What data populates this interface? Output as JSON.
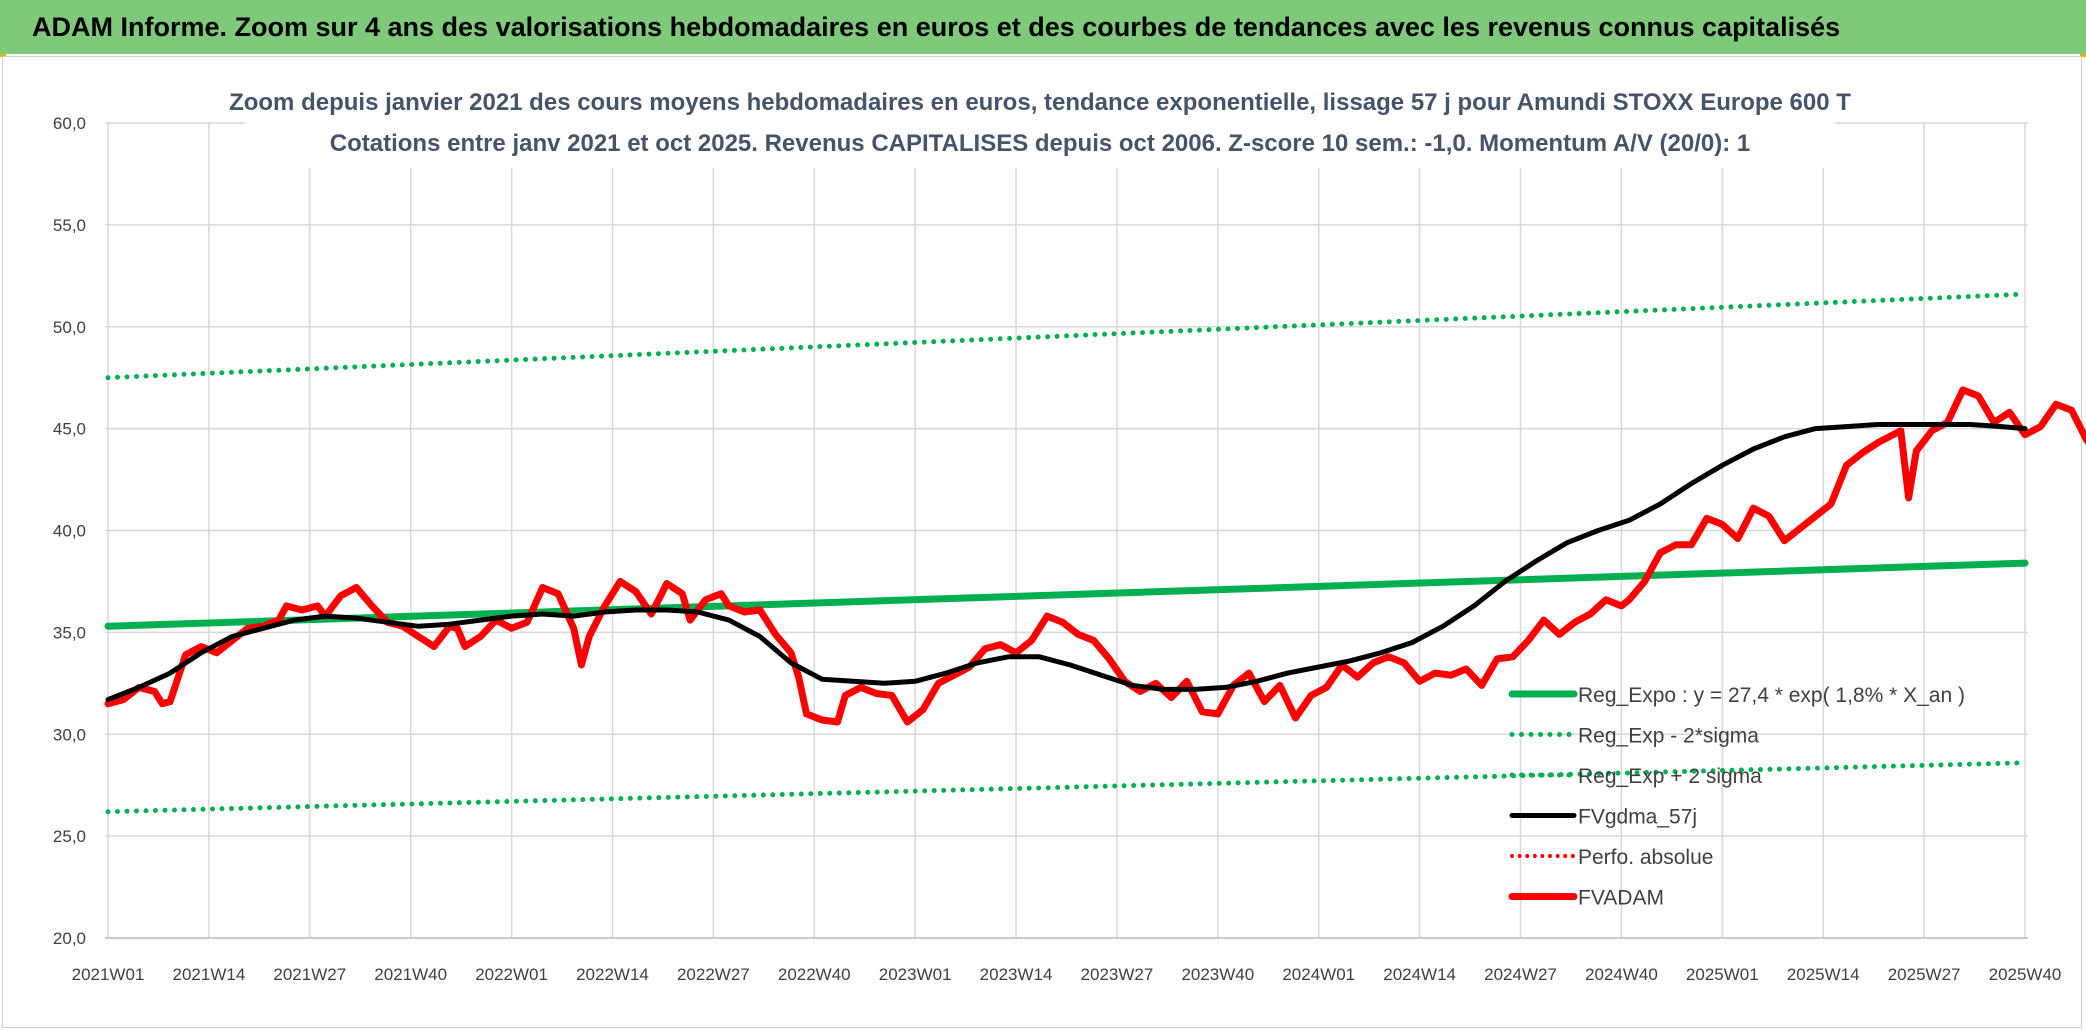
{
  "header": {
    "title": "ADAM Informe. Zoom sur 4 ans des valorisations hebdomadaires en euros et des courbes de tendances avec les revenus connus capitalisés"
  },
  "chart_data": {
    "type": "line",
    "title": "Zoom depuis janvier 2021 des cours moyens hebdomadaires en euros, tendance exponentielle, lissage 57 j pour Amundi STOXX Europe 600 T",
    "subtitle": "Cotations entre janv 2021 et oct 2025. Revenus CAPITALISES depuis oct 2006. Z-score 10 sem.: -1,0. Momentum A/V (20/0): 1",
    "xlabel": "",
    "ylabel": "",
    "ylim": [
      20,
      60
    ],
    "yticks": [
      "20,0",
      "25,0",
      "30,0",
      "35,0",
      "40,0",
      "45,0",
      "50,0",
      "55,0",
      "60,0"
    ],
    "x_range": [
      0,
      248
    ],
    "x_ticks": [
      {
        "x": 0,
        "label": "2021W01"
      },
      {
        "x": 13,
        "label": "2021W14"
      },
      {
        "x": 26,
        "label": "2021W27"
      },
      {
        "x": 39,
        "label": "2021W40"
      },
      {
        "x": 52,
        "label": "2022W01"
      },
      {
        "x": 65,
        "label": "2022W14"
      },
      {
        "x": 78,
        "label": "2022W27"
      },
      {
        "x": 91,
        "label": "2022W40"
      },
      {
        "x": 104,
        "label": "2023W01"
      },
      {
        "x": 117,
        "label": "2023W14"
      },
      {
        "x": 130,
        "label": "2023W27"
      },
      {
        "x": 143,
        "label": "2023W40"
      },
      {
        "x": 156,
        "label": "2024W01"
      },
      {
        "x": 169,
        "label": "2024W14"
      },
      {
        "x": 182,
        "label": "2024W27"
      },
      {
        "x": 195,
        "label": "2024W40"
      },
      {
        "x": 208,
        "label": "2025W01"
      },
      {
        "x": 221,
        "label": "2025W14"
      },
      {
        "x": 234,
        "label": "2025W27"
      },
      {
        "x": 247,
        "label": "2025W40"
      }
    ],
    "grid": true,
    "legend_position": "right",
    "series": [
      {
        "name": "Reg_Expo : y = 27,4 * exp( 1,8% *  X_an )",
        "color": "#00b050",
        "style": "solid",
        "width": 7,
        "points": [
          [
            0,
            35.3
          ],
          [
            247,
            38.4
          ]
        ]
      },
      {
        "name": "Reg_Exp - 2*sigma",
        "color": "#00b050",
        "style": "dotted",
        "width": 5,
        "points": [
          [
            0,
            26.2
          ],
          [
            247,
            28.6
          ]
        ]
      },
      {
        "name": "Reg_Exp + 2 sigma",
        "color": "#00b050",
        "style": "dotted",
        "width": 5,
        "points": [
          [
            0,
            47.5
          ],
          [
            247,
            51.6
          ]
        ]
      },
      {
        "name": "FVgdma_57j",
        "color": "#000000",
        "style": "solid",
        "width": 5,
        "points": [
          [
            0,
            31.7
          ],
          [
            4,
            32.3
          ],
          [
            8,
            33.0
          ],
          [
            12,
            34.0
          ],
          [
            16,
            34.8
          ],
          [
            20,
            35.2
          ],
          [
            24,
            35.6
          ],
          [
            28,
            35.8
          ],
          [
            32,
            35.7
          ],
          [
            36,
            35.5
          ],
          [
            40,
            35.3
          ],
          [
            44,
            35.4
          ],
          [
            48,
            35.6
          ],
          [
            52,
            35.8
          ],
          [
            56,
            35.9
          ],
          [
            60,
            35.8
          ],
          [
            64,
            36.0
          ],
          [
            68,
            36.1
          ],
          [
            72,
            36.1
          ],
          [
            76,
            36.0
          ],
          [
            80,
            35.6
          ],
          [
            84,
            34.8
          ],
          [
            88,
            33.5
          ],
          [
            92,
            32.7
          ],
          [
            96,
            32.6
          ],
          [
            100,
            32.5
          ],
          [
            104,
            32.6
          ],
          [
            108,
            33.0
          ],
          [
            112,
            33.5
          ],
          [
            116,
            33.8
          ],
          [
            120,
            33.8
          ],
          [
            124,
            33.4
          ],
          [
            128,
            32.9
          ],
          [
            132,
            32.4
          ],
          [
            136,
            32.2
          ],
          [
            140,
            32.2
          ],
          [
            144,
            32.3
          ],
          [
            148,
            32.6
          ],
          [
            152,
            33.0
          ],
          [
            156,
            33.3
          ],
          [
            160,
            33.6
          ],
          [
            164,
            34.0
          ],
          [
            168,
            34.5
          ],
          [
            172,
            35.3
          ],
          [
            176,
            36.3
          ],
          [
            180,
            37.5
          ],
          [
            184,
            38.5
          ],
          [
            188,
            39.4
          ],
          [
            192,
            40.0
          ],
          [
            196,
            40.5
          ],
          [
            200,
            41.3
          ],
          [
            204,
            42.3
          ],
          [
            208,
            43.2
          ],
          [
            212,
            44.0
          ],
          [
            216,
            44.6
          ],
          [
            220,
            45.0
          ],
          [
            224,
            45.1
          ],
          [
            228,
            45.2
          ],
          [
            232,
            45.2
          ],
          [
            236,
            45.2
          ],
          [
            240,
            45.2
          ],
          [
            244,
            45.1
          ],
          [
            247,
            45.0
          ]
        ]
      },
      {
        "name": "Perfo. absolue",
        "color": "#ff0000",
        "style": "dotted",
        "width": 4,
        "points": []
      },
      {
        "name": "FVADAM",
        "color": "#ff0000",
        "style": "solid",
        "width": 7,
        "points": [
          [
            0,
            31.5
          ],
          [
            2,
            31.7
          ],
          [
            4,
            32.3
          ],
          [
            6,
            32.1
          ],
          [
            7,
            31.5
          ],
          [
            8,
            31.6
          ],
          [
            10,
            33.9
          ],
          [
            12,
            34.3
          ],
          [
            14,
            34.0
          ],
          [
            16,
            34.6
          ],
          [
            18,
            35.2
          ],
          [
            20,
            35.3
          ],
          [
            22,
            35.6
          ],
          [
            23,
            36.3
          ],
          [
            25,
            36.1
          ],
          [
            27,
            36.3
          ],
          [
            28,
            35.8
          ],
          [
            30,
            36.8
          ],
          [
            32,
            37.2
          ],
          [
            34,
            36.3
          ],
          [
            36,
            35.5
          ],
          [
            38,
            35.3
          ],
          [
            40,
            34.8
          ],
          [
            42,
            34.3
          ],
          [
            44,
            35.3
          ],
          [
            45,
            35.2
          ],
          [
            46,
            34.3
          ],
          [
            48,
            34.8
          ],
          [
            50,
            35.6
          ],
          [
            52,
            35.2
          ],
          [
            54,
            35.5
          ],
          [
            56,
            37.2
          ],
          [
            58,
            36.9
          ],
          [
            60,
            35.2
          ],
          [
            61,
            33.4
          ],
          [
            62,
            34.8
          ],
          [
            64,
            36.3
          ],
          [
            66,
            37.5
          ],
          [
            68,
            37.0
          ],
          [
            70,
            35.9
          ],
          [
            72,
            37.4
          ],
          [
            74,
            36.9
          ],
          [
            75,
            35.6
          ],
          [
            77,
            36.6
          ],
          [
            79,
            36.9
          ],
          [
            80,
            36.3
          ],
          [
            82,
            36.0
          ],
          [
            84,
            36.1
          ],
          [
            86,
            34.9
          ],
          [
            88,
            34.0
          ],
          [
            89,
            32.8
          ],
          [
            90,
            31.0
          ],
          [
            92,
            30.7
          ],
          [
            94,
            30.6
          ],
          [
            95,
            31.9
          ],
          [
            97,
            32.3
          ],
          [
            99,
            32.0
          ],
          [
            101,
            31.9
          ],
          [
            103,
            30.6
          ],
          [
            105,
            31.2
          ],
          [
            107,
            32.5
          ],
          [
            109,
            32.9
          ],
          [
            111,
            33.3
          ],
          [
            113,
            34.2
          ],
          [
            115,
            34.4
          ],
          [
            117,
            34.0
          ],
          [
            119,
            34.6
          ],
          [
            121,
            35.8
          ],
          [
            123,
            35.5
          ],
          [
            125,
            34.9
          ],
          [
            127,
            34.6
          ],
          [
            129,
            33.7
          ],
          [
            131,
            32.6
          ],
          [
            133,
            32.1
          ],
          [
            135,
            32.5
          ],
          [
            137,
            31.8
          ],
          [
            139,
            32.6
          ],
          [
            141,
            31.1
          ],
          [
            143,
            31.0
          ],
          [
            145,
            32.4
          ],
          [
            147,
            33.0
          ],
          [
            149,
            31.6
          ],
          [
            151,
            32.4
          ],
          [
            153,
            30.8
          ],
          [
            155,
            31.9
          ],
          [
            157,
            32.3
          ],
          [
            159,
            33.4
          ],
          [
            161,
            32.8
          ],
          [
            163,
            33.5
          ],
          [
            165,
            33.8
          ],
          [
            167,
            33.5
          ],
          [
            169,
            32.6
          ],
          [
            171,
            33.0
          ],
          [
            173,
            32.9
          ],
          [
            175,
            33.2
          ],
          [
            177,
            32.4
          ],
          [
            179,
            33.7
          ],
          [
            181,
            33.8
          ],
          [
            183,
            34.6
          ],
          [
            185,
            35.6
          ],
          [
            187,
            34.9
          ],
          [
            189,
            35.5
          ],
          [
            191,
            35.9
          ],
          [
            193,
            36.6
          ],
          [
            195,
            36.3
          ],
          [
            196,
            36.6
          ],
          [
            198,
            37.5
          ],
          [
            200,
            38.9
          ],
          [
            202,
            39.3
          ],
          [
            204,
            39.3
          ],
          [
            206,
            40.6
          ],
          [
            208,
            40.3
          ],
          [
            210,
            39.6
          ],
          [
            212,
            41.1
          ],
          [
            214,
            40.7
          ],
          [
            216,
            39.5
          ],
          [
            218,
            40.1
          ],
          [
            220,
            40.7
          ],
          [
            222,
            41.3
          ],
          [
            224,
            43.2
          ],
          [
            226,
            43.8
          ],
          [
            228,
            44.3
          ],
          [
            229,
            44.5
          ],
          [
            231,
            44.9
          ],
          [
            232,
            41.6
          ],
          [
            233,
            43.9
          ],
          [
            235,
            44.9
          ],
          [
            237,
            45.3
          ],
          [
            239,
            46.9
          ],
          [
            241,
            46.6
          ],
          [
            243,
            45.3
          ],
          [
            245,
            45.8
          ],
          [
            247,
            44.7
          ],
          [
            249,
            45.1
          ],
          [
            251,
            46.2
          ],
          [
            253,
            45.9
          ],
          [
            255,
            44.4
          ],
          [
            256,
            45.0
          ]
        ]
      }
    ]
  }
}
